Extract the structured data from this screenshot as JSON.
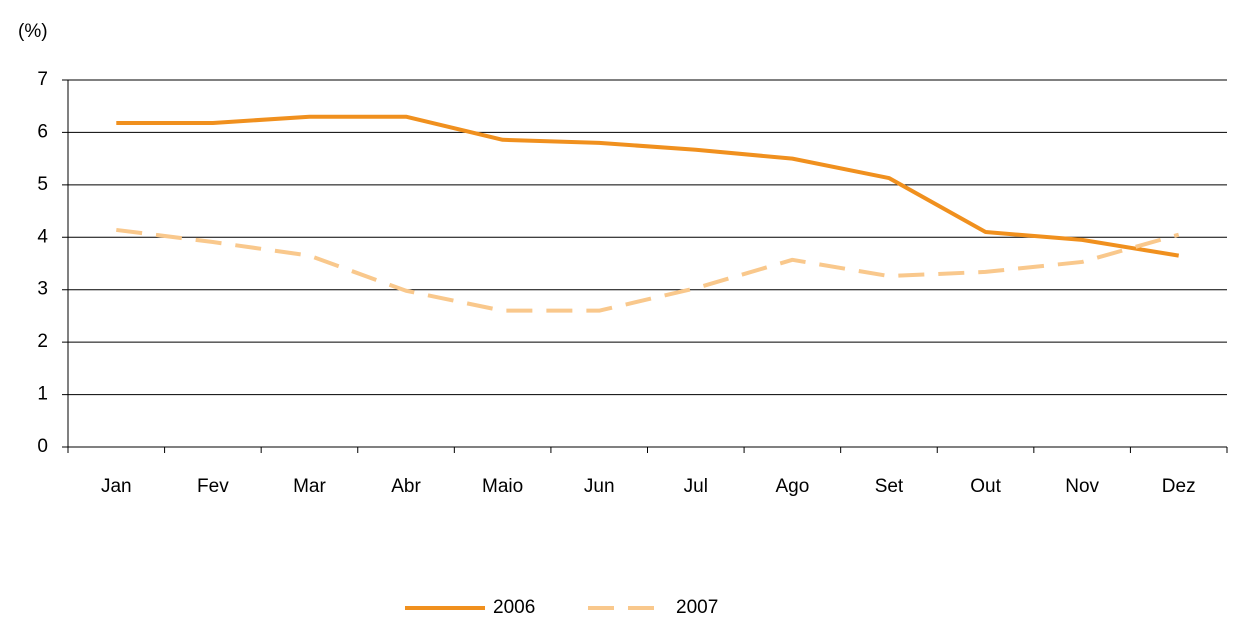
{
  "chart_data": {
    "type": "line",
    "ylabel": "(%)",
    "categories": [
      "Jan",
      "Fev",
      "Mar",
      "Abr",
      "Maio",
      "Jun",
      "Jul",
      "Ago",
      "Set",
      "Out",
      "Nov",
      "Dez"
    ],
    "series": [
      {
        "name": "2006",
        "color": "#f0901e",
        "dash": false,
        "values": [
          6.18,
          6.18,
          6.3,
          6.3,
          5.86,
          5.8,
          5.67,
          5.5,
          5.13,
          4.1,
          3.95,
          3.65
        ]
      },
      {
        "name": "2007",
        "color": "#f9c88c",
        "dash": true,
        "values": [
          4.14,
          3.91,
          3.65,
          2.98,
          2.6,
          2.6,
          3.03,
          3.57,
          3.26,
          3.34,
          3.53,
          4.05
        ]
      }
    ],
    "ylim": [
      0,
      7
    ],
    "yticks": [
      0,
      1,
      2,
      3,
      4,
      5,
      6,
      7
    ],
    "grid": true,
    "legend": "bottom"
  }
}
